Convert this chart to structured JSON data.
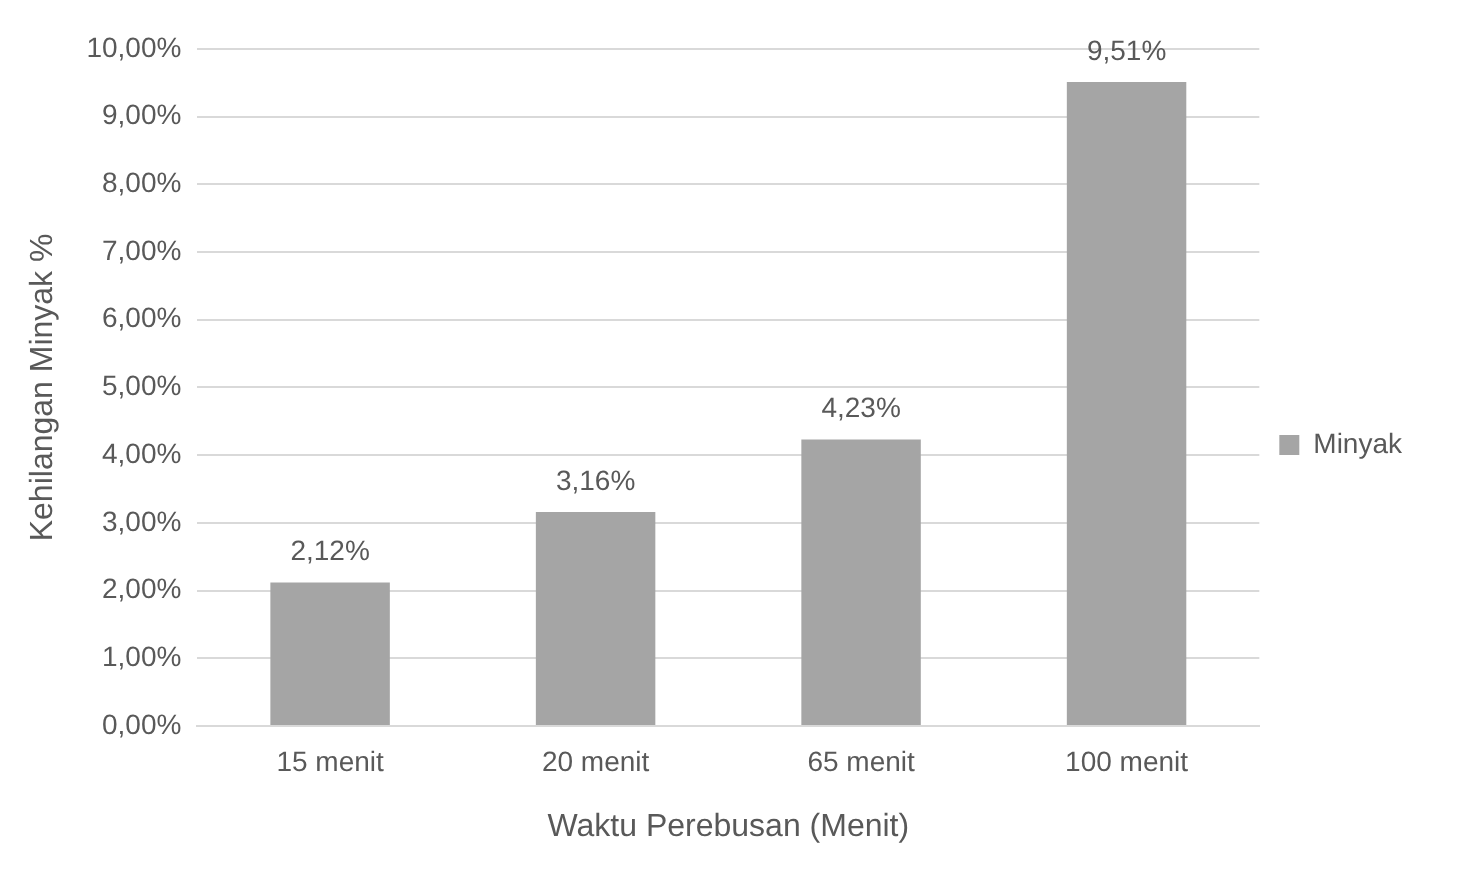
{
  "chart_data": {
    "type": "bar",
    "xlabel": "Waktu Perebusan (Menit)",
    "ylabel": "Kehilangan Minyak %",
    "categories": [
      "15 menit",
      "20 menit",
      "65 menit",
      "100 menit"
    ],
    "series": [
      {
        "name": "Minyak",
        "color": "#a5a5a5",
        "values": [
          2.12,
          3.16,
          4.23,
          9.51
        ],
        "value_labels": [
          "2,12%",
          "3,16%",
          "4,23%",
          "9,51%"
        ]
      }
    ],
    "ylim": [
      0,
      10
    ],
    "yticks": [
      {
        "value": 0,
        "label": "0,00%"
      },
      {
        "value": 1,
        "label": "1,00%"
      },
      {
        "value": 2,
        "label": "2,00%"
      },
      {
        "value": 3,
        "label": "3,00%"
      },
      {
        "value": 4,
        "label": "4,00%"
      },
      {
        "value": 5,
        "label": "5,00%"
      },
      {
        "value": 6,
        "label": "6,00%"
      },
      {
        "value": 7,
        "label": "7,00%"
      },
      {
        "value": 8,
        "label": "8,00%"
      },
      {
        "value": 9,
        "label": "9,00%"
      },
      {
        "value": 10,
        "label": "10,00%"
      }
    ],
    "grid": "y",
    "legend": "right"
  }
}
